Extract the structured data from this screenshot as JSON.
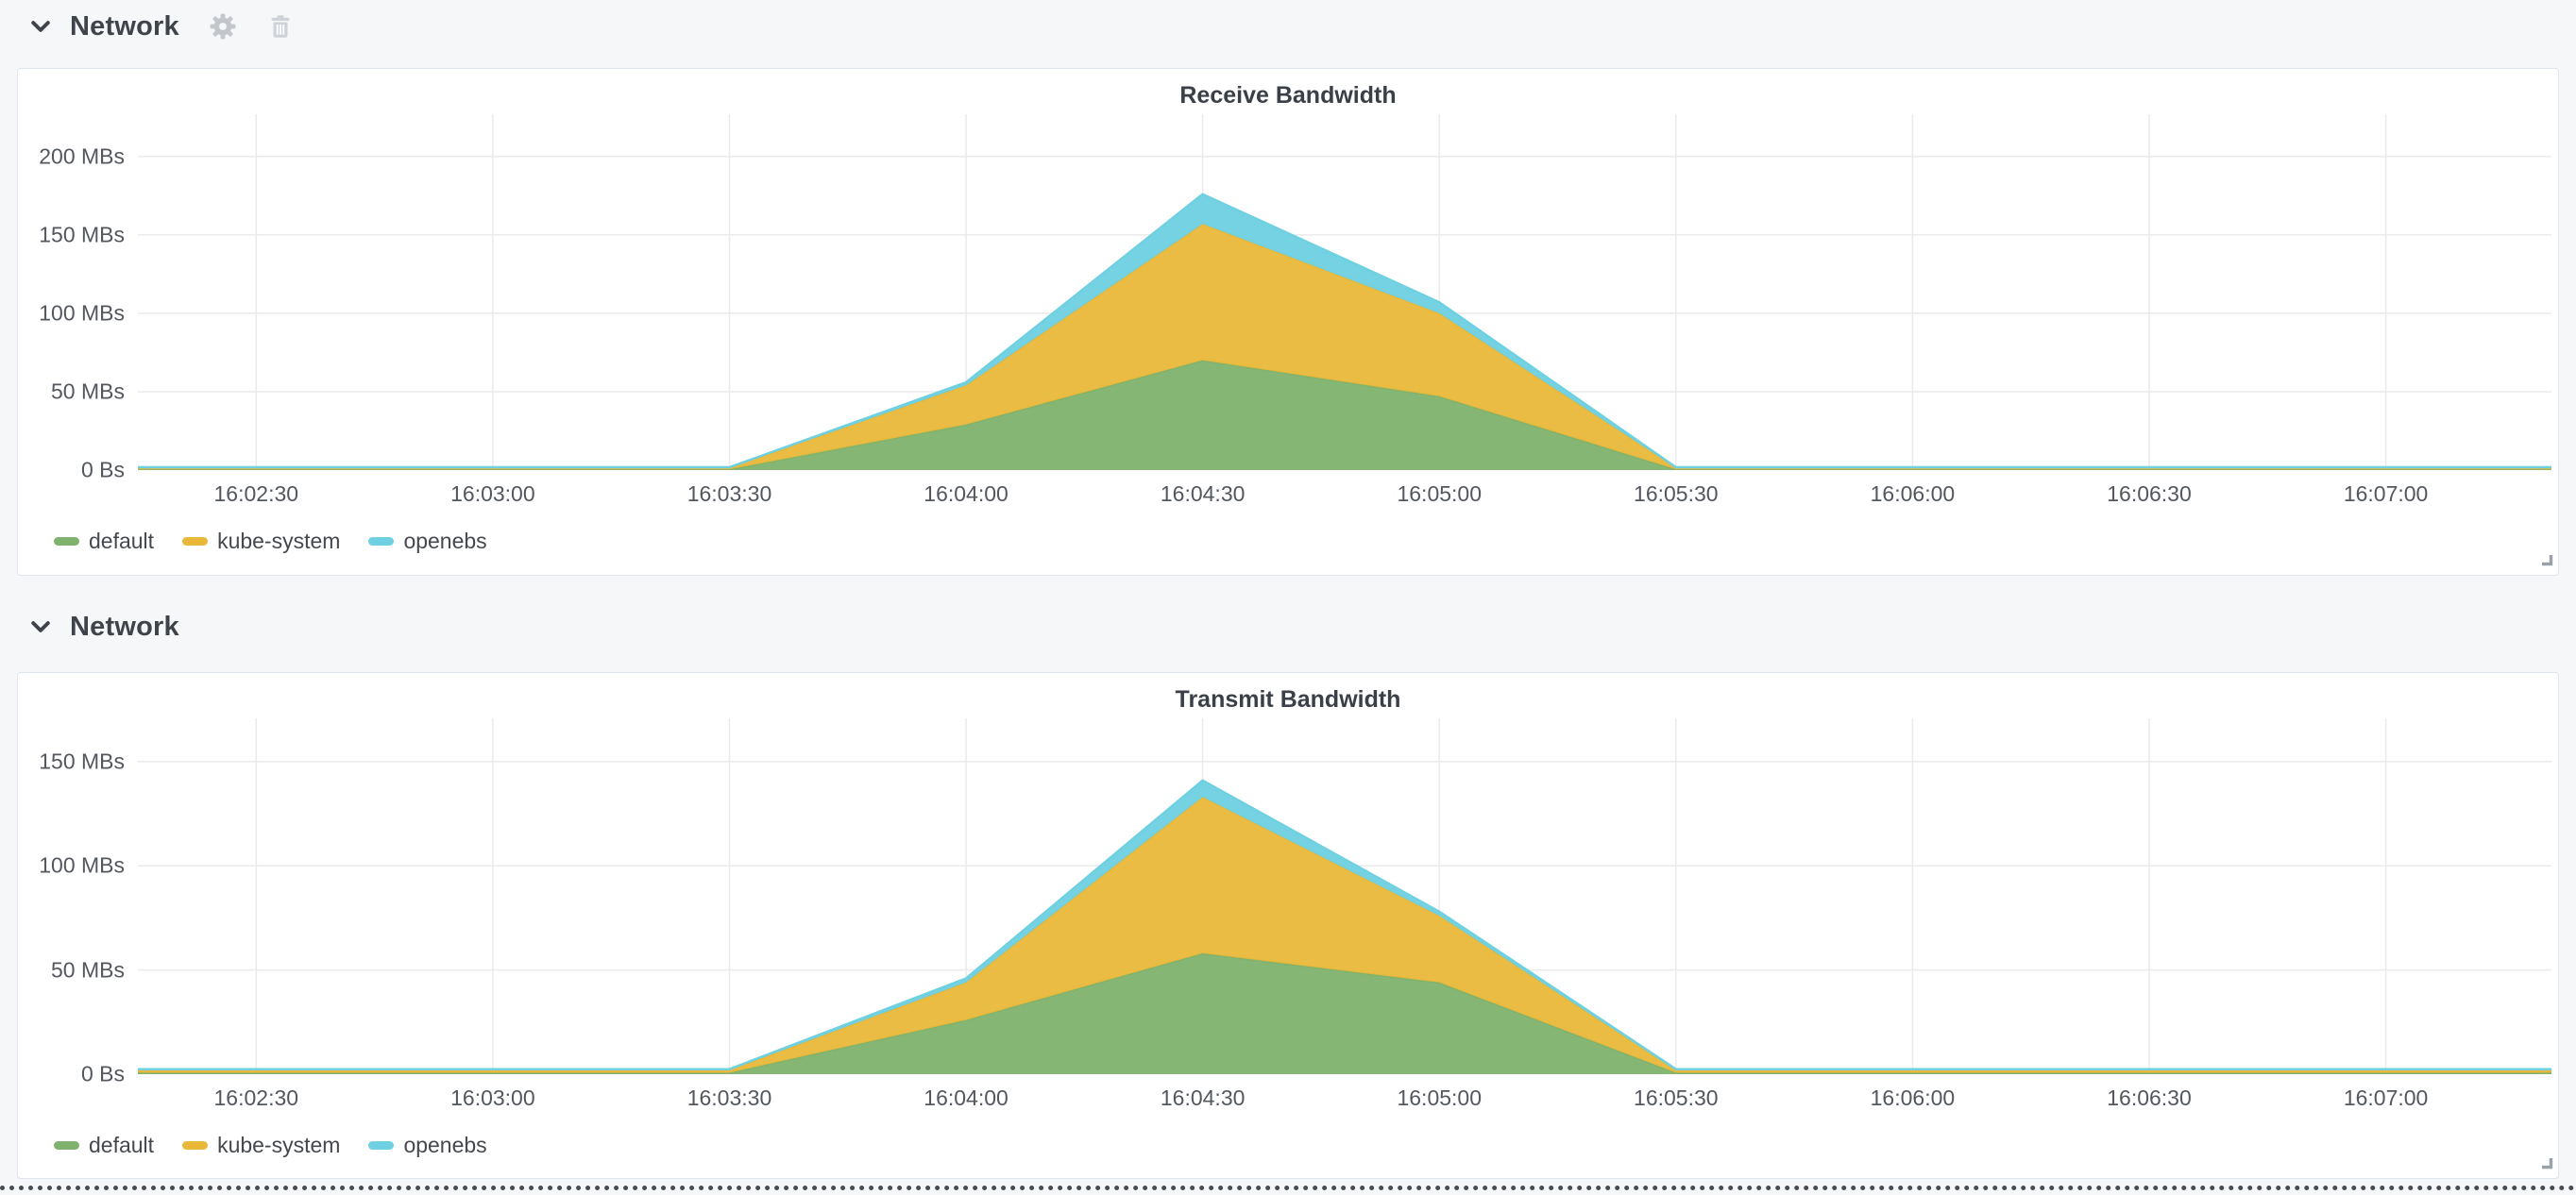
{
  "page": {
    "background": "#f6f7f9",
    "panel_background": "#ffffff",
    "grid_color": "#eaeaea"
  },
  "sections": [
    {
      "title": "Network",
      "icons": [
        "chevron-down-icon",
        "gear-icon",
        "trash-icon"
      ]
    },
    {
      "title": "Network",
      "icons": [
        "chevron-down-icon"
      ]
    }
  ],
  "colors": {
    "green": "#7EB26D",
    "yellow": "#EAB839",
    "cyan": "#6ED0E0"
  },
  "chart_data": [
    {
      "type": "area",
      "stacked": true,
      "title": "Receive Bandwidth",
      "xlabel": "",
      "ylabel": "",
      "grid": true,
      "legend_position": "bottom-left",
      "xlim_seconds": [
        135,
        441
      ],
      "ylim": [
        0,
        227
      ],
      "x_seconds": [
        135,
        150,
        180,
        210,
        240,
        270,
        300,
        330,
        360,
        390,
        420,
        441
      ],
      "x_tick_seconds": [
        150,
        180,
        210,
        240,
        270,
        300,
        330,
        360,
        390,
        420
      ],
      "x_tick_labels": [
        "16:02:30",
        "16:03:00",
        "16:03:30",
        "16:04:00",
        "16:04:30",
        "16:05:00",
        "16:05:30",
        "16:06:00",
        "16:06:30",
        "16:07:00"
      ],
      "y_ticks": [
        {
          "value": 0,
          "label": "0 Bs"
        },
        {
          "value": 50,
          "label": "50 MBs"
        },
        {
          "value": 100,
          "label": "100 MBs"
        },
        {
          "value": 150,
          "label": "150 MBs"
        },
        {
          "value": 200,
          "label": "200 MBs"
        }
      ],
      "y_unit": "MBs",
      "series": [
        {
          "name": "default",
          "color": "#7EB26D",
          "values": [
            0.5,
            0.5,
            0.5,
            0.5,
            29,
            70,
            47,
            0.5,
            0.5,
            0.5,
            0.5,
            0.5
          ]
        },
        {
          "name": "kube-system",
          "color": "#EAB839",
          "values": [
            1.0,
            1.0,
            1.0,
            1.0,
            25,
            87,
            53,
            1.0,
            1.0,
            1.0,
            1.0,
            1.0
          ]
        },
        {
          "name": "openebs",
          "color": "#6ED0E0",
          "values": [
            0.3,
            0.3,
            0.3,
            0.3,
            2,
            19,
            7,
            0.3,
            0.3,
            0.3,
            0.3,
            0.3
          ]
        }
      ]
    },
    {
      "type": "area",
      "stacked": true,
      "title": "Transmit Bandwidth",
      "xlabel": "",
      "ylabel": "",
      "grid": true,
      "legend_position": "bottom-left",
      "xlim_seconds": [
        135,
        441
      ],
      "ylim": [
        0,
        170.8
      ],
      "x_seconds": [
        135,
        150,
        180,
        210,
        240,
        270,
        300,
        330,
        360,
        390,
        420,
        441
      ],
      "x_tick_seconds": [
        150,
        180,
        210,
        240,
        270,
        300,
        330,
        360,
        390,
        420
      ],
      "x_tick_labels": [
        "16:02:30",
        "16:03:00",
        "16:03:30",
        "16:04:00",
        "16:04:30",
        "16:05:00",
        "16:05:30",
        "16:06:00",
        "16:06:30",
        "16:07:00"
      ],
      "y_ticks": [
        {
          "value": 0,
          "label": "0 Bs"
        },
        {
          "value": 50,
          "label": "50 MBs"
        },
        {
          "value": 100,
          "label": "100 MBs"
        },
        {
          "value": 150,
          "label": "150 MBs"
        }
      ],
      "y_unit": "MBs",
      "series": [
        {
          "name": "default",
          "color": "#7EB26D",
          "values": [
            0.7,
            0.7,
            0.7,
            0.7,
            26,
            58,
            44,
            0.7,
            0.7,
            0.7,
            0.7,
            0.7
          ]
        },
        {
          "name": "kube-system",
          "color": "#EAB839",
          "values": [
            1.3,
            1.3,
            1.3,
            1.3,
            18,
            75,
            32,
            1.3,
            1.3,
            1.3,
            1.3,
            1.3
          ]
        },
        {
          "name": "openebs",
          "color": "#6ED0E0",
          "values": [
            0.4,
            0.4,
            0.4,
            0.4,
            2,
            8,
            2,
            0.4,
            0.4,
            0.4,
            0.4,
            0.4
          ]
        }
      ]
    }
  ]
}
